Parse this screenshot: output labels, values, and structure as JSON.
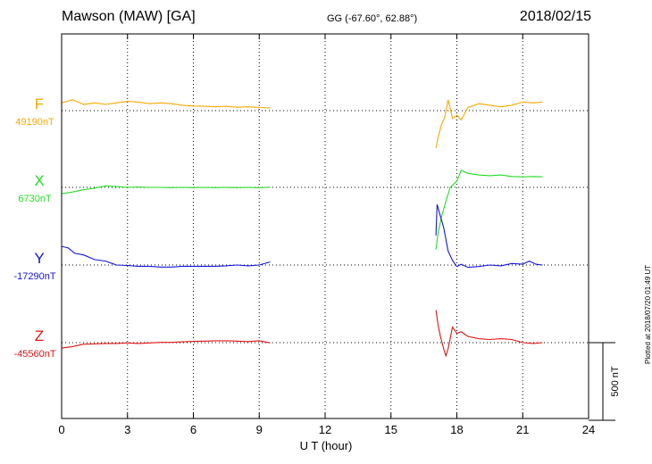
{
  "header": {
    "station": "Mawson (MAW)  [GA]",
    "coords": "GG (-67.60°,  62.88°)",
    "date": "2018/02/15"
  },
  "footer": {
    "plotted": "Plotted at 2018/07/20 01:49 UT"
  },
  "chart_data": {
    "type": "line",
    "title": "Mawson (MAW)  [GA]",
    "xlabel": "U T (hour)",
    "xlim": [
      0,
      24
    ],
    "xticks": [
      0,
      3,
      6,
      9,
      12,
      15,
      18,
      21,
      24
    ],
    "grid": true,
    "scale_bar": {
      "label": "500 nT",
      "value_nT": 500
    },
    "series": [
      {
        "name": "F",
        "baseline_label": "49190nT",
        "baseline_nT": 49190,
        "color": "#f5a800",
        "points": [
          [
            0,
            49240
          ],
          [
            0.5,
            49260
          ],
          [
            1,
            49230
          ],
          [
            1.5,
            49240
          ],
          [
            2,
            49230
          ],
          [
            2.5,
            49240
          ],
          [
            3,
            49250
          ],
          [
            3.5,
            49245
          ],
          [
            4,
            49235
          ],
          [
            4.5,
            49240
          ],
          [
            5,
            49235
          ],
          [
            5.5,
            49225
          ],
          [
            6,
            49220
          ],
          [
            6.5,
            49218
          ],
          [
            7,
            49215
          ],
          [
            7.5,
            49218
          ],
          [
            8,
            49212
          ],
          [
            8.5,
            49215
          ],
          [
            9,
            49210
          ],
          [
            9.5,
            49208
          ],
          [
            17.05,
            48950
          ],
          [
            17.15,
            49020
          ],
          [
            17.3,
            49100
          ],
          [
            17.45,
            49150
          ],
          [
            17.6,
            49260
          ],
          [
            17.8,
            49140
          ],
          [
            18,
            49160
          ],
          [
            18.2,
            49130
          ],
          [
            18.5,
            49210
          ],
          [
            19,
            49235
          ],
          [
            19.5,
            49225
          ],
          [
            20,
            49215
          ],
          [
            20.5,
            49225
          ],
          [
            21,
            49245
          ],
          [
            21.5,
            49240
          ],
          [
            21.9,
            49245
          ]
        ]
      },
      {
        "name": "X",
        "baseline_label": "6730nT",
        "baseline_nT": 6730,
        "color": "#22dd22",
        "points": [
          [
            0,
            6690
          ],
          [
            0.5,
            6700
          ],
          [
            1,
            6715
          ],
          [
            1.5,
            6725
          ],
          [
            2,
            6740
          ],
          [
            2.5,
            6735
          ],
          [
            3,
            6730
          ],
          [
            3.5,
            6733
          ],
          [
            4,
            6730
          ],
          [
            4.5,
            6730
          ],
          [
            5,
            6728
          ],
          [
            5.5,
            6730
          ],
          [
            6,
            6728
          ],
          [
            6.5,
            6730
          ],
          [
            7,
            6728
          ],
          [
            7.5,
            6730
          ],
          [
            8,
            6728
          ],
          [
            8.5,
            6730
          ],
          [
            9,
            6727
          ],
          [
            9.5,
            6731
          ],
          [
            17.05,
            6330
          ],
          [
            17.15,
            6440
          ],
          [
            17.3,
            6540
          ],
          [
            17.5,
            6640
          ],
          [
            17.7,
            6730
          ],
          [
            18,
            6770
          ],
          [
            18.2,
            6840
          ],
          [
            18.5,
            6820
          ],
          [
            19,
            6810
          ],
          [
            19.5,
            6805
          ],
          [
            20,
            6810
          ],
          [
            20.5,
            6800
          ],
          [
            21,
            6798
          ],
          [
            21.5,
            6800
          ],
          [
            21.9,
            6798
          ]
        ]
      },
      {
        "name": "Y",
        "baseline_label": "-17290nT",
        "baseline_nT": -17290,
        "color": "#1414dd",
        "points": [
          [
            0,
            -17170
          ],
          [
            0.3,
            -17180
          ],
          [
            0.6,
            -17215
          ],
          [
            1,
            -17225
          ],
          [
            1.5,
            -17255
          ],
          [
            2,
            -17265
          ],
          [
            2.5,
            -17290
          ],
          [
            3,
            -17293
          ],
          [
            3.5,
            -17298
          ],
          [
            4,
            -17298
          ],
          [
            4.5,
            -17303
          ],
          [
            5,
            -17303
          ],
          [
            5.5,
            -17298
          ],
          [
            6,
            -17298
          ],
          [
            6.5,
            -17298
          ],
          [
            7,
            -17298
          ],
          [
            7.5,
            -17295
          ],
          [
            8,
            -17290
          ],
          [
            8.5,
            -17295
          ],
          [
            9,
            -17290
          ],
          [
            9.5,
            -17270
          ],
          [
            17.05,
            -17100
          ],
          [
            17.1,
            -16900
          ],
          [
            17.2,
            -16950
          ],
          [
            17.4,
            -17050
          ],
          [
            17.6,
            -17200
          ],
          [
            17.8,
            -17260
          ],
          [
            18,
            -17300
          ],
          [
            18.2,
            -17285
          ],
          [
            18.5,
            -17305
          ],
          [
            19,
            -17300
          ],
          [
            19.5,
            -17290
          ],
          [
            20,
            -17295
          ],
          [
            20.5,
            -17280
          ],
          [
            21,
            -17285
          ],
          [
            21.3,
            -17265
          ],
          [
            21.6,
            -17285
          ],
          [
            21.9,
            -17290
          ]
        ]
      },
      {
        "name": "Z",
        "baseline_label": "-45560nT",
        "baseline_nT": -45560,
        "color": "#e01414",
        "points": [
          [
            0,
            -45595
          ],
          [
            0.5,
            -45585
          ],
          [
            1,
            -45570
          ],
          [
            1.5,
            -45568
          ],
          [
            2,
            -45565
          ],
          [
            2.5,
            -45565
          ],
          [
            3,
            -45562
          ],
          [
            3.5,
            -45565
          ],
          [
            4,
            -45562
          ],
          [
            4.5,
            -45558
          ],
          [
            5,
            -45558
          ],
          [
            5.5,
            -45555
          ],
          [
            6,
            -45552
          ],
          [
            6.5,
            -45550
          ],
          [
            7,
            -45548
          ],
          [
            7.5,
            -45548
          ],
          [
            8,
            -45550
          ],
          [
            8.5,
            -45553
          ],
          [
            9,
            -45548
          ],
          [
            9.5,
            -45562
          ],
          [
            17.05,
            -45350
          ],
          [
            17.15,
            -45450
          ],
          [
            17.25,
            -45520
          ],
          [
            17.4,
            -45600
          ],
          [
            17.5,
            -45645
          ],
          [
            17.6,
            -45600
          ],
          [
            17.8,
            -45460
          ],
          [
            18,
            -45500
          ],
          [
            18.2,
            -45490
          ],
          [
            18.5,
            -45520
          ],
          [
            19,
            -45535
          ],
          [
            19.5,
            -45540
          ],
          [
            20,
            -45535
          ],
          [
            20.5,
            -45540
          ],
          [
            21,
            -45560
          ],
          [
            21.5,
            -45565
          ],
          [
            21.9,
            -45560
          ]
        ]
      }
    ]
  }
}
